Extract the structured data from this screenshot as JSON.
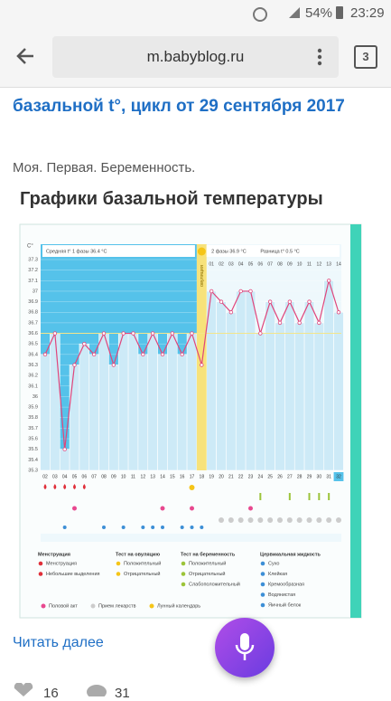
{
  "status_bar": {
    "battery": "54%",
    "time": "23:29"
  },
  "browser": {
    "url": "m.babyblog.ru",
    "tab_count": 3
  },
  "article": {
    "title": "базальной t°, цикл от 29 сентября 2017",
    "subtitle": "Моя. Первая. Беременность.",
    "heading": "Графики базальной температуры",
    "read_more": "Читать далее",
    "likes": 16,
    "comments": 31
  },
  "chart_data": {
    "type": "line",
    "y_unit": "C°",
    "phase1_label": "Средняя t° 1 фазы  36.4 °C",
    "phase2_label": "2 фазы  36.9 °C",
    "difference_label": "Разница t°  0.5 °C",
    "ovulation_label": "овуляция",
    "categories": [
      "02",
      "03",
      "04",
      "05",
      "06",
      "07",
      "08",
      "09",
      "10",
      "11",
      "12",
      "13",
      "14",
      "15",
      "16",
      "17",
      "18",
      "19",
      "20",
      "21",
      "22",
      "23",
      "24",
      "25",
      "26",
      "27",
      "28",
      "29",
      "30",
      "31",
      "32"
    ],
    "phase2_days": [
      "01",
      "02",
      "03",
      "04",
      "05",
      "06",
      "07",
      "08",
      "09",
      "10",
      "11",
      "12",
      "13",
      "14"
    ],
    "values": [
      36.4,
      36.6,
      35.5,
      36.3,
      36.5,
      36.4,
      36.6,
      36.3,
      36.6,
      36.6,
      36.4,
      36.6,
      36.4,
      36.6,
      36.4,
      36.6,
      36.3,
      37.0,
      36.9,
      36.8,
      37.0,
      37.0,
      36.6,
      36.9,
      36.7,
      36.9,
      36.7,
      36.9,
      36.7,
      37.1,
      36.8
    ],
    "color": "#e0457b",
    "ylim": [
      35.3,
      37.3
    ],
    "yticks": [
      35.3,
      35.4,
      35.5,
      35.6,
      35.7,
      35.8,
      35.9,
      36.0,
      36.1,
      36.2,
      36.3,
      36.4,
      36.5,
      36.6,
      36.7,
      36.8,
      36.9,
      37.0,
      37.1,
      37.2,
      37.3
    ],
    "legend_groups": [
      {
        "title": "Менструация",
        "items": [
          "Менструация",
          "Небольшие выделения"
        ]
      },
      {
        "title": "Тест на овуляцию",
        "items": [
          "Положительный",
          "Отрицательный"
        ]
      },
      {
        "title": "Тест на беременность",
        "items": [
          "Положительный",
          "Отрицательный",
          "Слабоположительный"
        ]
      },
      {
        "title": "Цервикальная жидкость",
        "items": [
          "Сухо",
          "Клейкая",
          "Кремообразная",
          "Водянистая",
          "Яичный белок"
        ]
      }
    ],
    "legend_extra": [
      "Половой акт",
      "Прием лекарств",
      "Лунный календарь"
    ]
  }
}
